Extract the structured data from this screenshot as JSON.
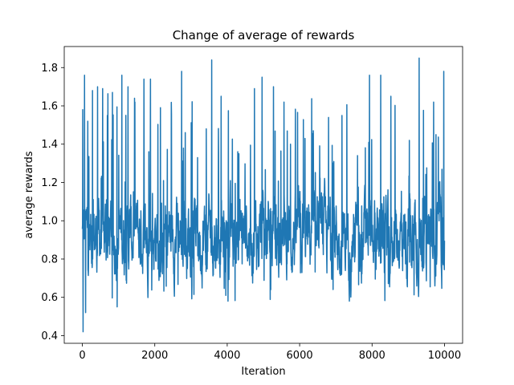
{
  "chart_data": {
    "type": "line",
    "title": "Change of average of rewards",
    "xlabel": "Iteration",
    "ylabel": "average rewards",
    "xlim": [
      -500,
      10500
    ],
    "ylim": [
      0.36,
      1.91
    ],
    "x_ticks": [
      0,
      2000,
      4000,
      6000,
      8000,
      10000
    ],
    "y_ticks": [
      0.4,
      0.6,
      0.8,
      1.0,
      1.2,
      1.4,
      1.6,
      1.8
    ],
    "x_tick_labels": [
      "0",
      "2000",
      "4000",
      "6000",
      "8000",
      "10000"
    ],
    "y_tick_labels": [
      "0.4",
      "0.6",
      "0.8",
      "1.0",
      "1.2",
      "1.4",
      "1.6",
      "1.8"
    ],
    "grid": false,
    "line_color": "#1f77b4",
    "series": [
      {
        "name": "average rewards",
        "x_start": 0,
        "x_end": 10000,
        "n_points": 2000,
        "seed": 12345,
        "baseline": 0.92,
        "noise": 0.12,
        "min": 0.42,
        "max": 1.85,
        "peaks": [
          {
            "x": 10,
            "y": 1.58
          },
          {
            "x": 60,
            "y": 1.76
          },
          {
            "x": 90,
            "y": 0.52
          },
          {
            "x": 150,
            "y": 1.52
          },
          {
            "x": 20,
            "y": 0.42
          },
          {
            "x": 280,
            "y": 1.68
          },
          {
            "x": 420,
            "y": 1.7
          },
          {
            "x": 560,
            "y": 1.69
          },
          {
            "x": 690,
            "y": 1.55
          },
          {
            "x": 830,
            "y": 1.67
          },
          {
            "x": 960,
            "y": 0.55
          },
          {
            "x": 1090,
            "y": 1.76
          },
          {
            "x": 1260,
            "y": 1.7
          },
          {
            "x": 1450,
            "y": 1.62
          },
          {
            "x": 1700,
            "y": 1.74
          },
          {
            "x": 1880,
            "y": 1.74
          },
          {
            "x": 2240,
            "y": 1.21
          },
          {
            "x": 2740,
            "y": 1.78
          },
          {
            "x": 2840,
            "y": 1.46
          },
          {
            "x": 3180,
            "y": 1.33
          },
          {
            "x": 3420,
            "y": 1.48
          },
          {
            "x": 3570,
            "y": 1.84
          },
          {
            "x": 3830,
            "y": 1.65
          },
          {
            "x": 4020,
            "y": 0.58
          },
          {
            "x": 4320,
            "y": 1.35
          },
          {
            "x": 4750,
            "y": 1.69
          },
          {
            "x": 4960,
            "y": 1.75
          },
          {
            "x": 5280,
            "y": 1.7
          },
          {
            "x": 5570,
            "y": 1.62
          },
          {
            "x": 5750,
            "y": 1.4
          },
          {
            "x": 6150,
            "y": 1.43
          },
          {
            "x": 6380,
            "y": 1.47
          },
          {
            "x": 6800,
            "y": 1.54
          },
          {
            "x": 7170,
            "y": 1.55
          },
          {
            "x": 7600,
            "y": 1.34
          },
          {
            "x": 7930,
            "y": 1.76
          },
          {
            "x": 8240,
            "y": 1.76
          },
          {
            "x": 8520,
            "y": 1.65
          },
          {
            "x": 9030,
            "y": 1.42
          },
          {
            "x": 9300,
            "y": 1.85
          },
          {
            "x": 9700,
            "y": 1.62
          },
          {
            "x": 9980,
            "y": 1.78
          }
        ]
      }
    ]
  }
}
